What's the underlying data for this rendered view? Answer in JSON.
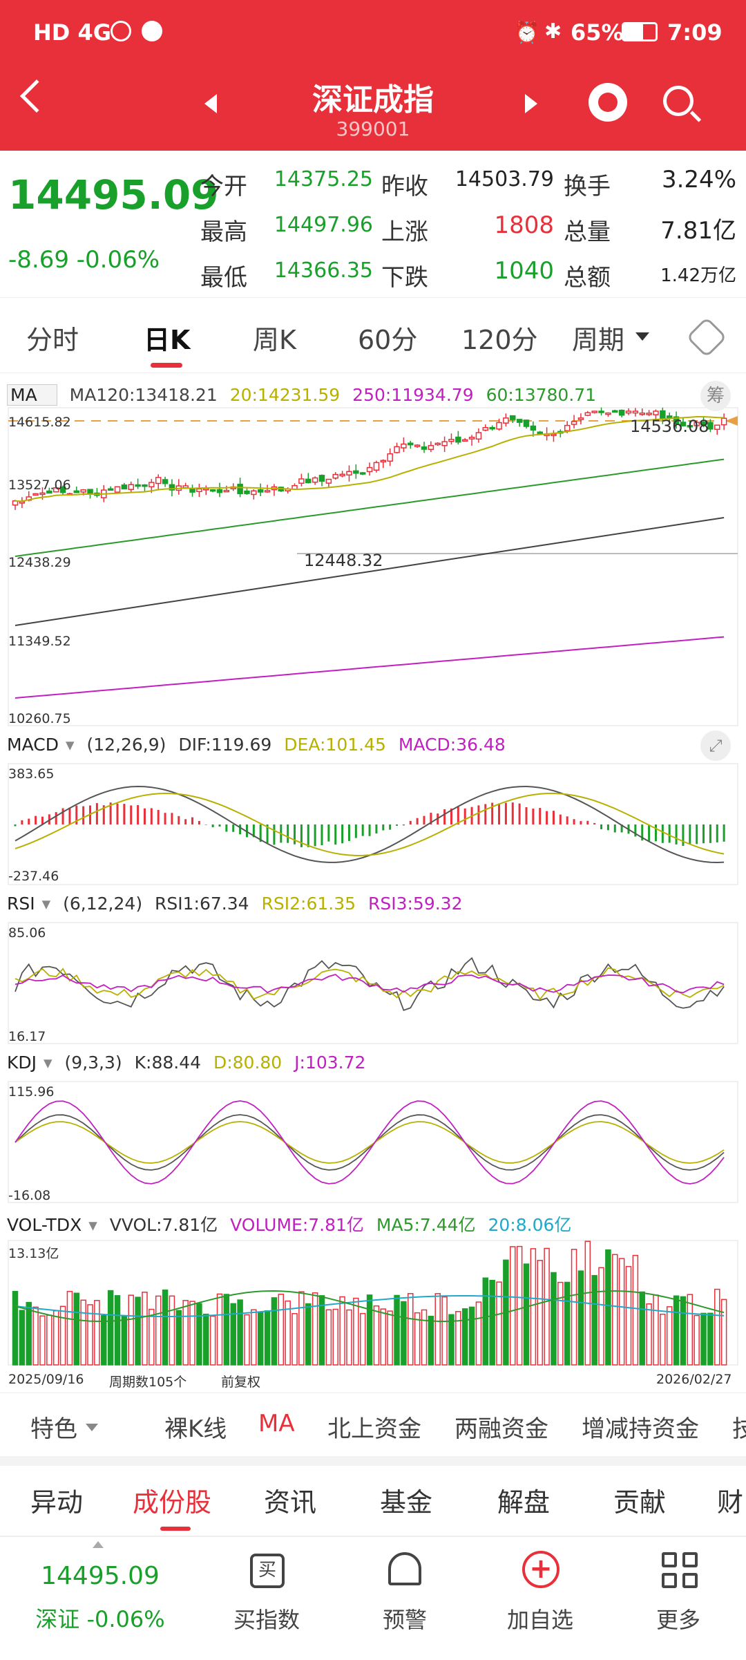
{
  "status_bar": {
    "left": "HD 4G",
    "battery": "65%",
    "time": "7:09"
  },
  "header": {
    "title": "深证成指",
    "code": "399001"
  },
  "quote": {
    "price": "14495.09",
    "change": "-8.69  -0.06%",
    "rows": [
      {
        "l1": "今开",
        "v1": "14375.25",
        "l2": "昨收",
        "v2": "14503.79",
        "l3": "换手",
        "v3": "3.24%"
      },
      {
        "l1": "最高",
        "v1": "14497.96",
        "l2": "上涨",
        "v2": "1808",
        "l3": "总量",
        "v3": "7.81亿"
      },
      {
        "l1": "最低",
        "v1": "14366.35",
        "l2": "下跌",
        "v2": "1040",
        "l3": "总额",
        "v3": "1.42万亿"
      }
    ]
  },
  "period_tabs": [
    "分时",
    "日K",
    "周K",
    "60分",
    "120分",
    "周期"
  ],
  "ma_panel": {
    "label": "MA",
    "ma120": "MA120:13418.21",
    "ma20": "20:14231.59",
    "ma250": "250:11934.79",
    "ma60": "60:13780.71",
    "chip_button": "筹",
    "y_labels": [
      "14615.82",
      "13527.06",
      "12438.29",
      "11349.52",
      "10260.75"
    ],
    "high_marker": "14536.08",
    "low_marker": "12448.32"
  },
  "macd_panel": {
    "label": "MACD",
    "params": "(12,26,9)",
    "dif": "DIF:119.69",
    "dea": "DEA:101.45",
    "macd": "MACD:36.48",
    "y_top": "383.65",
    "y_bottom": "-237.46"
  },
  "rsi_panel": {
    "label": "RSI",
    "params": "(6,12,24)",
    "rsi1": "RSI1:67.34",
    "rsi2": "RSI2:61.35",
    "rsi3": "RSI3:59.32",
    "y_top": "85.06",
    "y_bottom": "16.17"
  },
  "kdj_panel": {
    "label": "KDJ",
    "params": "(9,3,3)",
    "k": "K:88.44",
    "d": "D:80.80",
    "j": "J:103.72",
    "y_top": "115.96",
    "y_bottom": "-16.08"
  },
  "vol_panel": {
    "label": "VOL-TDX",
    "vvol": "VVOL:7.81亿",
    "volume": "VOLUME:7.81亿",
    "ma5": "MA5:7.44亿",
    "ma20": "20:8.06亿",
    "y_top": "13.13亿"
  },
  "date_axis": {
    "start": "2025/09/16",
    "period_count": "周期数105个",
    "adjust": "前复权",
    "end": "2026/02/27"
  },
  "feature_toolbar": [
    "特色",
    "裸K线",
    "MA",
    "北上资金",
    "两融资金",
    "增减持资金",
    "技"
  ],
  "sub_tabs": [
    "异动",
    "成份股",
    "资讯",
    "基金",
    "解盘",
    "贡献",
    "财"
  ],
  "bottom_nav": {
    "price": "14495.09",
    "index_change": "深证 -0.06%",
    "items": [
      {
        "label": "买指数",
        "icon": "buy-icon"
      },
      {
        "label": "预警",
        "icon": "bell-icon"
      },
      {
        "label": "加自选",
        "icon": "add-circle-icon"
      },
      {
        "label": "更多",
        "icon": "grid-icon"
      }
    ]
  },
  "colors": {
    "brand": "#e8303a",
    "up": "#e8303a",
    "down": "#19a02b",
    "ma20": "#b8b000",
    "ma60": "#2b9a2b",
    "ma120": "#444444",
    "ma250": "#c020c0"
  }
}
